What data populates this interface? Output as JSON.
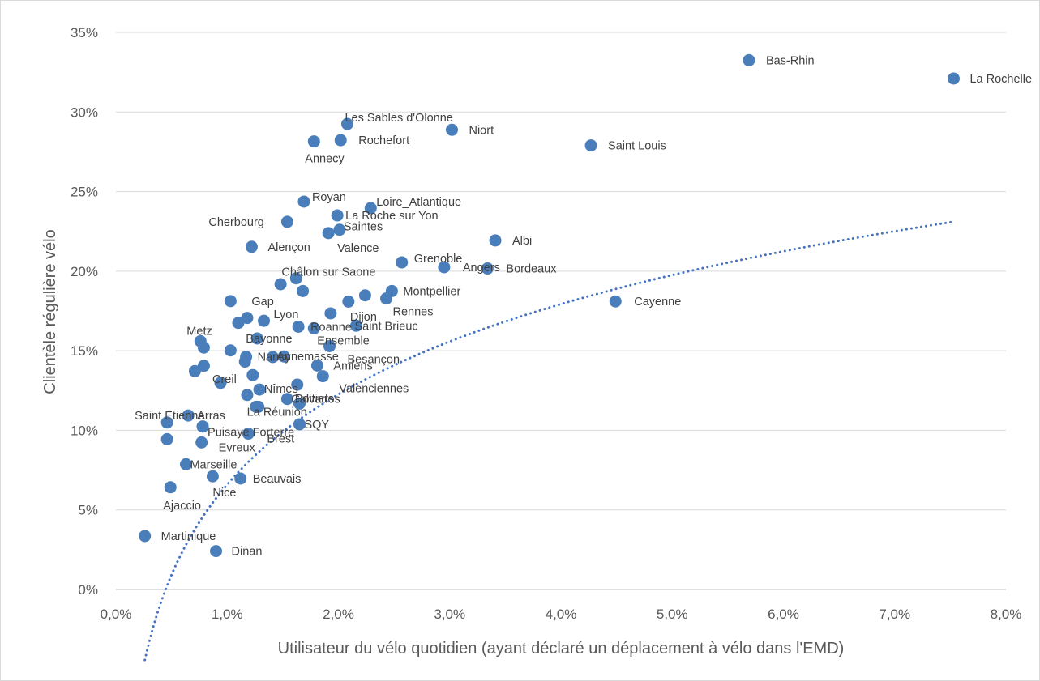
{
  "chart_data": {
    "type": "scatter",
    "xlabel": "Utilisateur du vélo quotidien (ayant déclaré un déplacement à vélo dans l'EMD)",
    "ylabel": "Clientèle régulière vélo",
    "xlim": [
      0,
      0.08
    ],
    "ylim": [
      0,
      0.35
    ],
    "x_ticks": [
      "0,0%",
      "1,0%",
      "2,0%",
      "3,0%",
      "4,0%",
      "5,0%",
      "6,0%",
      "7,0%",
      "8,0%"
    ],
    "y_ticks": [
      "0%",
      "5%",
      "10%",
      "15%",
      "20%",
      "25%",
      "30%",
      "35%"
    ],
    "grid": "horizontal",
    "marker_color": "#4a7ebb",
    "trendline": {
      "type": "logarithmic",
      "style": "dotted",
      "color": "#4472c4",
      "x_start": 0.0026,
      "x_end": 0.0753,
      "a": 0.0818,
      "b": 0.4426
    },
    "points": [
      {
        "label": "Bas-Rhin",
        "x": 0.0569,
        "y": 0.3325
      },
      {
        "label": "La Rochelle",
        "x": 0.0753,
        "y": 0.321
      },
      {
        "label": "Les Sables d'Olonne",
        "x": 0.0208,
        "y": 0.2925
      },
      {
        "label": "Niort",
        "x": 0.0302,
        "y": 0.2888
      },
      {
        "label": "Annecy",
        "x": 0.0178,
        "y": 0.2815
      },
      {
        "label": "Rochefort",
        "x": 0.0202,
        "y": 0.2823
      },
      {
        "label": "Saint Louis",
        "x": 0.0427,
        "y": 0.279
      },
      {
        "label": "Royan",
        "x": 0.0169,
        "y": 0.2437
      },
      {
        "label": "Loire_Atlantique",
        "x": 0.0229,
        "y": 0.2396
      },
      {
        "label": "Cherbourg",
        "x": 0.0154,
        "y": 0.231
      },
      {
        "label": "La Roche sur Yon",
        "x": 0.0199,
        "y": 0.235
      },
      {
        "label": "Saintes",
        "x": 0.0201,
        "y": 0.226
      },
      {
        "label": "Valence",
        "x": 0.0191,
        "y": 0.2239
      },
      {
        "label": "Alençon",
        "x": 0.0122,
        "y": 0.2153
      },
      {
        "label": "Albi",
        "x": 0.0341,
        "y": 0.2193
      },
      {
        "label": "Grenoble",
        "x": 0.0257,
        "y": 0.2055
      },
      {
        "label": "Angers",
        "x": 0.0295,
        "y": 0.2025
      },
      {
        "label": "Bordeaux",
        "x": 0.0334,
        "y": 0.2017
      },
      {
        "label": "Châlon sur Saone",
        "x": 0.0162,
        "y": 0.1955
      },
      {
        "label": "",
        "x": 0.0148,
        "y": 0.1918
      },
      {
        "label": "",
        "x": 0.0168,
        "y": 0.1875
      },
      {
        "label": "Montpellier",
        "x": 0.0248,
        "y": 0.1875
      },
      {
        "label": "",
        "x": 0.0224,
        "y": 0.1848
      },
      {
        "label": "Rennes",
        "x": 0.0243,
        "y": 0.1828
      },
      {
        "label": "",
        "x": 0.0209,
        "y": 0.1809
      },
      {
        "label": "Cayenne",
        "x": 0.0449,
        "y": 0.181
      },
      {
        "label": "Gap",
        "x": 0.0103,
        "y": 0.1812
      },
      {
        "label": "Dijon",
        "x": 0.0193,
        "y": 0.1735
      },
      {
        "label": "",
        "x": 0.0118,
        "y": 0.1706
      },
      {
        "label": "Lyon",
        "x": 0.0133,
        "y": 0.1688
      },
      {
        "label": "",
        "x": 0.011,
        "y": 0.1675
      },
      {
        "label": "Roanne",
        "x": 0.0164,
        "y": 0.1651
      },
      {
        "label": "Saint Brieuc",
        "x": 0.0216,
        "y": 0.1657
      },
      {
        "label": "Ensemble",
        "x": 0.0178,
        "y": 0.1641
      },
      {
        "label": "Bayonne",
        "x": 0.0127,
        "y": 0.1577
      },
      {
        "label": "Metz",
        "x": 0.0076,
        "y": 0.156
      },
      {
        "label": "",
        "x": 0.0079,
        "y": 0.152
      },
      {
        "label": "Besançon",
        "x": 0.0192,
        "y": 0.1529
      },
      {
        "label": "",
        "x": 0.0103,
        "y": 0.1502
      },
      {
        "label": "Nancy",
        "x": 0.0117,
        "y": 0.1462
      },
      {
        "label": "",
        "x": 0.0141,
        "y": 0.146
      },
      {
        "label": "Annemasse",
        "x": 0.0151,
        "y": 0.1464
      },
      {
        "label": "",
        "x": 0.0116,
        "y": 0.1432
      },
      {
        "label": "Amiens",
        "x": 0.0181,
        "y": 0.1407
      },
      {
        "label": "",
        "x": 0.0079,
        "y": 0.1405
      },
      {
        "label": "",
        "x": 0.0071,
        "y": 0.1372
      },
      {
        "label": "Nîmes",
        "x": 0.0123,
        "y": 0.1347
      },
      {
        "label": "Valenciennes",
        "x": 0.0186,
        "y": 0.134
      },
      {
        "label": "Creil",
        "x": 0.0094,
        "y": 0.1298
      },
      {
        "label": "Poitiers",
        "x": 0.0163,
        "y": 0.1287
      },
      {
        "label": "",
        "x": 0.0129,
        "y": 0.1256
      },
      {
        "label": "",
        "x": 0.0118,
        "y": 0.1222
      },
      {
        "label": "Calvados",
        "x": 0.0154,
        "y": 0.1197
      },
      {
        "label": "",
        "x": 0.0165,
        "y": 0.1168
      },
      {
        "label": "",
        "x": 0.0126,
        "y": 0.1148
      },
      {
        "label": "La Réunion",
        "x": 0.0128,
        "y": 0.1148
      },
      {
        "label": "Arras",
        "x": 0.0065,
        "y": 0.1093
      },
      {
        "label": "Saint Etienne",
        "x": 0.0046,
        "y": 0.1049
      },
      {
        "label": "",
        "x": 0.0078,
        "y": 0.1024
      },
      {
        "label": "SQY",
        "x": 0.0165,
        "y": 0.1038
      },
      {
        "label": "Puisaye Forterre",
        "x": 0.0078,
        "y": 0.1024
      },
      {
        "label": "Brest",
        "x": 0.0119,
        "y": 0.0979
      },
      {
        "label": "",
        "x": 0.0046,
        "y": 0.0944
      },
      {
        "label": "Evreux",
        "x": 0.0077,
        "y": 0.0924
      },
      {
        "label": "Marseille",
        "x": 0.0063,
        "y": 0.0787
      },
      {
        "label": "Nice",
        "x": 0.0087,
        "y": 0.0711
      },
      {
        "label": "Beauvais",
        "x": 0.0112,
        "y": 0.0697
      },
      {
        "label": "Ajaccio",
        "x": 0.0049,
        "y": 0.0642
      },
      {
        "label": "Martinique",
        "x": 0.0026,
        "y": 0.0336
      },
      {
        "label": "Dinan",
        "x": 0.009,
        "y": 0.0241
      }
    ]
  }
}
